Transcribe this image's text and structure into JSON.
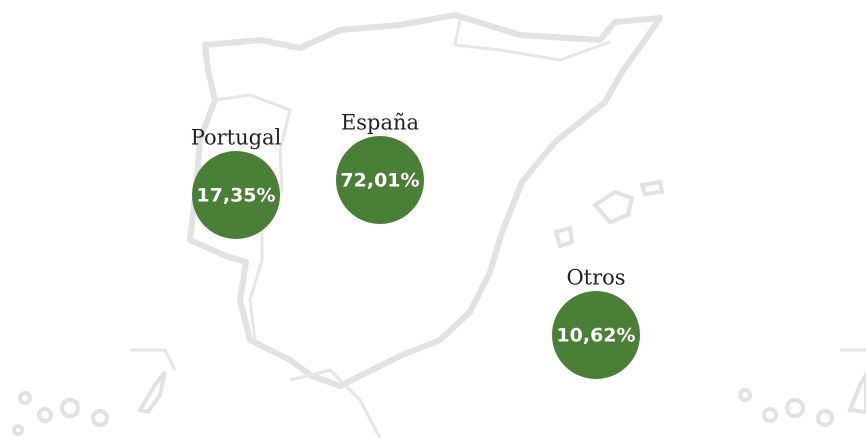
{
  "regions": [
    {
      "name": "Portugal",
      "share": "17,35%"
    },
    {
      "name": "España",
      "share": "72,01%"
    },
    {
      "name": "Otros",
      "share": "10,62%"
    }
  ]
}
